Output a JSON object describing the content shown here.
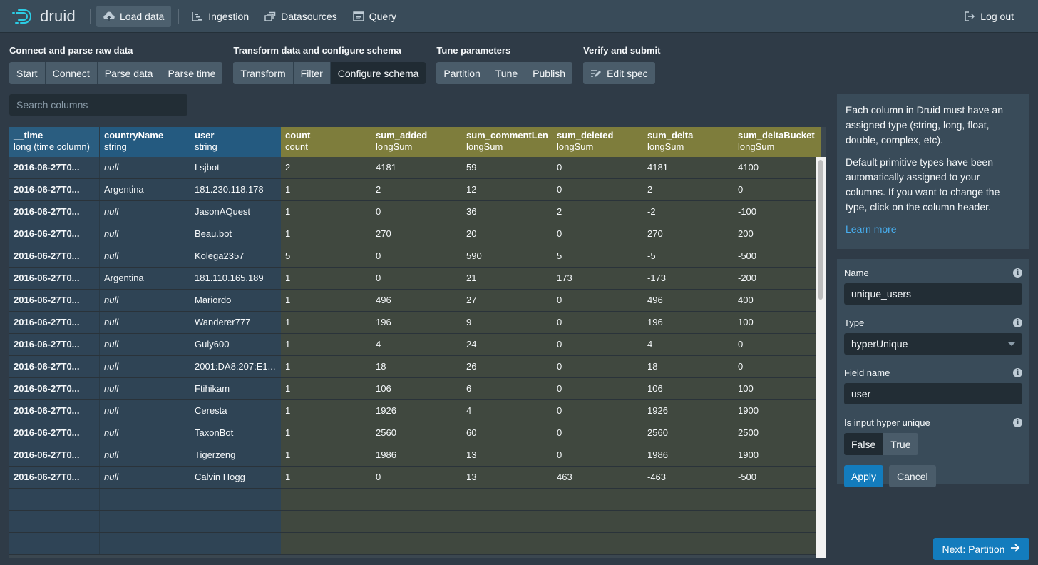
{
  "app": {
    "logo_text": "druid"
  },
  "nav": {
    "items": [
      {
        "label": "Load data",
        "icon": "cloud-upload-icon"
      },
      {
        "label": "Ingestion",
        "icon": "gantt-chart-icon"
      },
      {
        "label": "Datasources",
        "icon": "multi-select-icon"
      },
      {
        "label": "Query",
        "icon": "application-icon"
      }
    ],
    "logout": "Log out"
  },
  "steps": {
    "groups": [
      {
        "title": "Connect and parse raw data",
        "buttons": [
          "Start",
          "Connect",
          "Parse data",
          "Parse time"
        ]
      },
      {
        "title": "Transform data and configure schema",
        "buttons": [
          "Transform",
          "Filter",
          "Configure schema"
        ]
      },
      {
        "title": "Tune parameters",
        "buttons": [
          "Partition",
          "Tune",
          "Publish"
        ]
      },
      {
        "title": "Verify and submit",
        "buttons": [
          "Edit spec"
        ]
      }
    ],
    "active": "Configure schema"
  },
  "search": {
    "placeholder": "Search columns"
  },
  "table": {
    "columns": [
      {
        "name": "__time",
        "type": "long (time column)",
        "kind": "time"
      },
      {
        "name": "countryName",
        "type": "string",
        "kind": "dim"
      },
      {
        "name": "user",
        "type": "string",
        "kind": "dim"
      },
      {
        "name": "count",
        "type": "count",
        "kind": "met"
      },
      {
        "name": "sum_added",
        "type": "longSum",
        "kind": "met"
      },
      {
        "name": "sum_commentLen",
        "type": "longSum",
        "kind": "met"
      },
      {
        "name": "sum_deleted",
        "type": "longSum",
        "kind": "met"
      },
      {
        "name": "sum_delta",
        "type": "longSum",
        "kind": "met"
      },
      {
        "name": "sum_deltaBucket",
        "type": "longSum",
        "kind": "met"
      }
    ],
    "rows": [
      [
        "2016-06-27T0...",
        "null",
        "Lsjbot",
        "2",
        "4181",
        "59",
        "0",
        "4181",
        "4100"
      ],
      [
        "2016-06-27T0...",
        "Argentina",
        "181.230.118.178",
        "1",
        "2",
        "12",
        "0",
        "2",
        "0"
      ],
      [
        "2016-06-27T0...",
        "null",
        "JasonAQuest",
        "1",
        "0",
        "36",
        "2",
        "-2",
        "-100"
      ],
      [
        "2016-06-27T0...",
        "null",
        "Beau.bot",
        "1",
        "270",
        "20",
        "0",
        "270",
        "200"
      ],
      [
        "2016-06-27T0...",
        "null",
        "Kolega2357",
        "5",
        "0",
        "590",
        "5",
        "-5",
        "-500"
      ],
      [
        "2016-06-27T0...",
        "Argentina",
        "181.110.165.189",
        "1",
        "0",
        "21",
        "173",
        "-173",
        "-200"
      ],
      [
        "2016-06-27T0...",
        "null",
        "Mariordo",
        "1",
        "496",
        "27",
        "0",
        "496",
        "400"
      ],
      [
        "2016-06-27T0...",
        "null",
        "Wanderer777",
        "1",
        "196",
        "9",
        "0",
        "196",
        "100"
      ],
      [
        "2016-06-27T0...",
        "null",
        "Guly600",
        "1",
        "4",
        "24",
        "0",
        "4",
        "0"
      ],
      [
        "2016-06-27T0...",
        "null",
        "2001:DA8:207:E1...",
        "1",
        "18",
        "26",
        "0",
        "18",
        "0"
      ],
      [
        "2016-06-27T0...",
        "null",
        "Ftihikam",
        "1",
        "106",
        "6",
        "0",
        "106",
        "100"
      ],
      [
        "2016-06-27T0...",
        "null",
        "Ceresta",
        "1",
        "1926",
        "4",
        "0",
        "1926",
        "1900"
      ],
      [
        "2016-06-27T0...",
        "null",
        "TaxonBot",
        "1",
        "2560",
        "60",
        "0",
        "2560",
        "2500"
      ],
      [
        "2016-06-27T0...",
        "null",
        "Tigerzeng",
        "1",
        "1986",
        "13",
        "0",
        "1986",
        "1900"
      ],
      [
        "2016-06-27T0...",
        "null",
        "Calvin Hogg",
        "1",
        "0",
        "13",
        "463",
        "-463",
        "-500"
      ]
    ],
    "empty_rows": 3
  },
  "info": {
    "p1": "Each column in Druid must have an assigned type (string, long, float, double, complex, etc).",
    "p2": "Default primitive types have been automatically assigned to your columns. If you want to change the type, click on the column header.",
    "learn_more": "Learn more"
  },
  "form": {
    "name_label": "Name",
    "name_value": "unique_users",
    "type_label": "Type",
    "type_value": "hyperUnique",
    "field_label": "Field name",
    "field_value": "user",
    "hyper_label": "Is input hyper unique",
    "false_label": "False",
    "true_label": "True",
    "apply": "Apply",
    "cancel": "Cancel"
  },
  "next_button": "Next: Partition"
}
